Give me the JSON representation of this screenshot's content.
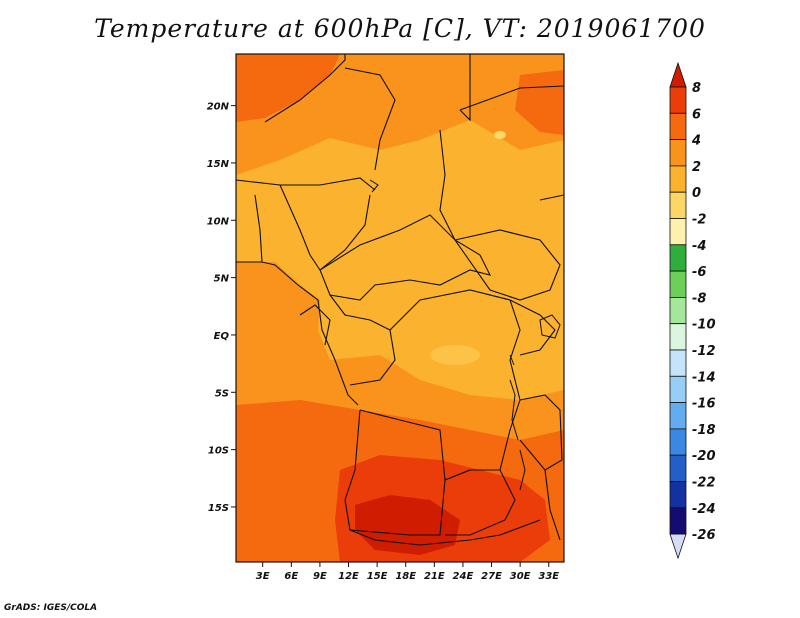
{
  "title": "Temperature at 600hPa [C], VT: 2019061700",
  "credit": "GrADS: IGES/COLA",
  "map": {
    "lat_ticks": [
      "20N",
      "15N",
      "10N",
      "5N",
      "EQ",
      "5S",
      "10S",
      "15S"
    ],
    "lon_ticks": [
      "3E",
      "6E",
      "9E",
      "12E",
      "15E",
      "18E",
      "21E",
      "24E",
      "27E",
      "30E",
      "33E"
    ],
    "lat_values": [
      20,
      15,
      10,
      5,
      0,
      -5,
      -10,
      -15
    ],
    "lon_values": [
      3,
      6,
      9,
      12,
      15,
      18,
      21,
      24,
      27,
      30,
      33
    ],
    "lat_range": [
      -19.8,
      24.5
    ],
    "lon_range": [
      0.2,
      34.6
    ],
    "field": "temperature",
    "units": "C",
    "level": "600hPa"
  },
  "colorbar": {
    "labels": [
      "8",
      "6",
      "4",
      "2",
      "0",
      "-2",
      "-4",
      "-6",
      "-8",
      "-10",
      "-12",
      "-14",
      "-16",
      "-18",
      "-20",
      "-22",
      "-24",
      "-26"
    ],
    "colors": [
      "#d01c00",
      "#ea3d0a",
      "#f5690f",
      "#f9931c",
      "#fbb22e",
      "#fcd666",
      "#fcf2ad",
      "#2eaf3a",
      "#6ccf5a",
      "#a5e79a",
      "#dbf6dc",
      "#c4e4fb",
      "#96cef8",
      "#64acf0",
      "#3a88e2",
      "#2260c8",
      "#1232a0",
      "#140c70",
      "#d6dcf8"
    ]
  }
}
